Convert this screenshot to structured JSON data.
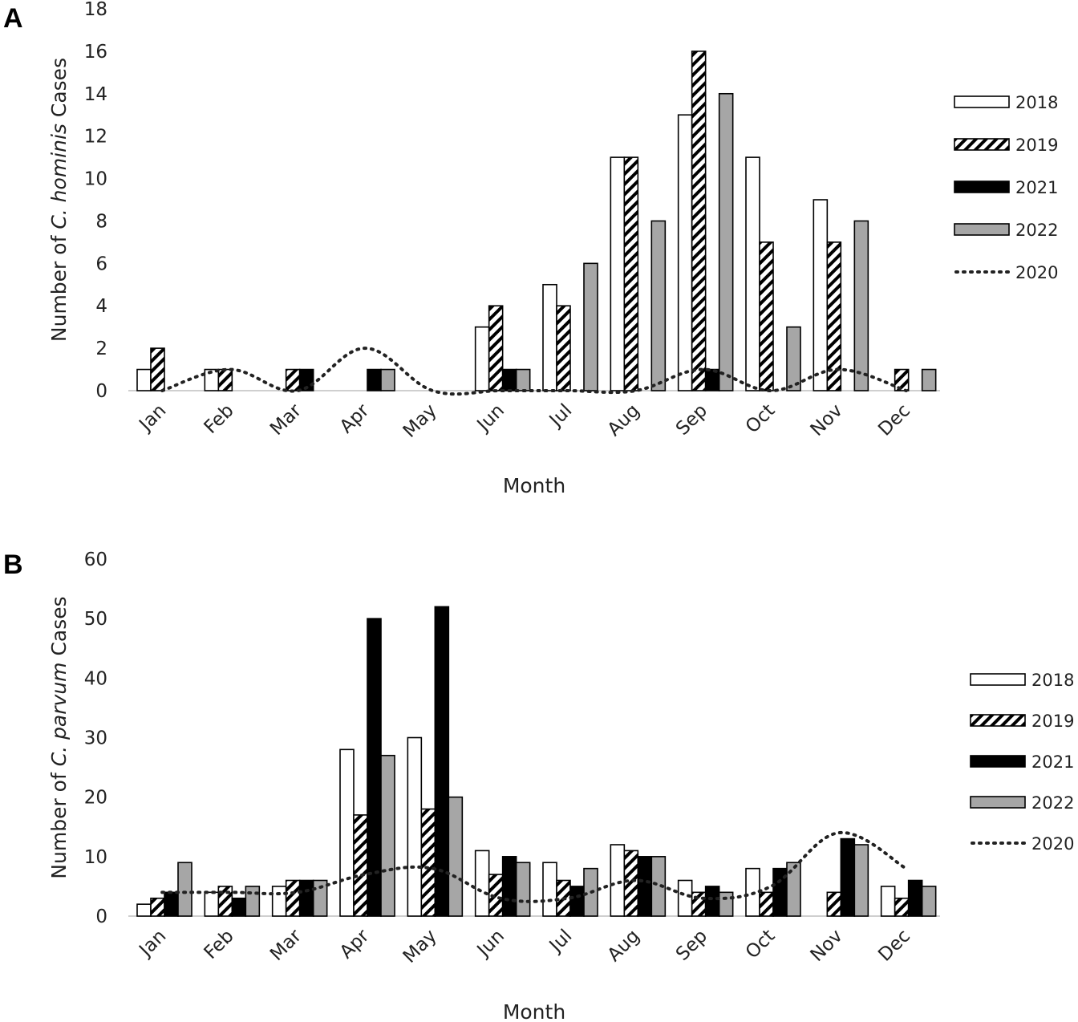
{
  "chart_data": [
    {
      "panel": "A",
      "type": "bar",
      "xlabel": "Month",
      "ylabel_parts": [
        "Number of ",
        "C. hominis",
        " Cases"
      ],
      "ylim": [
        0,
        18
      ],
      "yticks": [
        "0",
        "2",
        "4",
        "6",
        "8",
        "10",
        "12",
        "14",
        "16",
        "18"
      ],
      "categories": [
        "Jan",
        "Feb",
        "Mar",
        "Apr",
        "May",
        "Jun",
        "Jul",
        "Aug",
        "Sep",
        "Oct",
        "Nov",
        "Dec"
      ],
      "series": [
        {
          "name": "2018",
          "style": "white",
          "values": [
            1,
            1,
            0,
            0,
            0,
            3,
            5,
            11,
            13,
            11,
            9,
            0
          ]
        },
        {
          "name": "2019",
          "style": "hatch",
          "values": [
            2,
            1,
            1,
            0,
            0,
            4,
            4,
            11,
            16,
            7,
            7,
            1
          ]
        },
        {
          "name": "2021",
          "style": "black",
          "values": [
            0,
            0,
            1,
            1,
            0,
            1,
            0,
            0,
            1,
            0,
            0,
            0
          ]
        },
        {
          "name": "2022",
          "style": "gray",
          "values": [
            0,
            0,
            0,
            1,
            0,
            1,
            6,
            8,
            14,
            3,
            8,
            1
          ]
        }
      ],
      "line_series": {
        "name": "2020",
        "style": "dotted",
        "values": [
          0,
          1,
          0,
          2,
          0,
          0,
          0,
          0,
          1,
          0,
          1,
          0
        ]
      },
      "legend_position": "right",
      "legend": [
        "2018",
        "2019",
        "2021",
        "2022",
        "2020"
      ]
    },
    {
      "panel": "B",
      "type": "bar",
      "xlabel": "Month",
      "ylabel_parts": [
        "Number of ",
        "C. parvum",
        " Cases"
      ],
      "ylim": [
        0,
        60
      ],
      "yticks": [
        "0",
        "10",
        "20",
        "30",
        "40",
        "50",
        "60"
      ],
      "categories": [
        "Jan",
        "Feb",
        "Mar",
        "Apr",
        "May",
        "Jun",
        "Jul",
        "Aug",
        "Sep",
        "Oct",
        "Nov",
        "Dec"
      ],
      "series": [
        {
          "name": "2018",
          "style": "white",
          "values": [
            2,
            4,
            5,
            28,
            30,
            11,
            9,
            12,
            6,
            8,
            0,
            5
          ]
        },
        {
          "name": "2019",
          "style": "hatch",
          "values": [
            3,
            5,
            6,
            17,
            18,
            7,
            6,
            11,
            4,
            4,
            4,
            3
          ]
        },
        {
          "name": "2021",
          "style": "black",
          "values": [
            4,
            3,
            6,
            50,
            52,
            10,
            5,
            10,
            5,
            8,
            13,
            6
          ]
        },
        {
          "name": "2022",
          "style": "gray",
          "values": [
            9,
            5,
            6,
            27,
            20,
            9,
            8,
            10,
            4,
            9,
            12,
            5
          ]
        }
      ],
      "line_series": {
        "name": "2020",
        "style": "dotted",
        "values": [
          4,
          4,
          4,
          7,
          8,
          3,
          3,
          6,
          3,
          5,
          14,
          8
        ]
      },
      "legend_position": "right",
      "legend": [
        "2018",
        "2019",
        "2021",
        "2022",
        "2020"
      ]
    }
  ]
}
